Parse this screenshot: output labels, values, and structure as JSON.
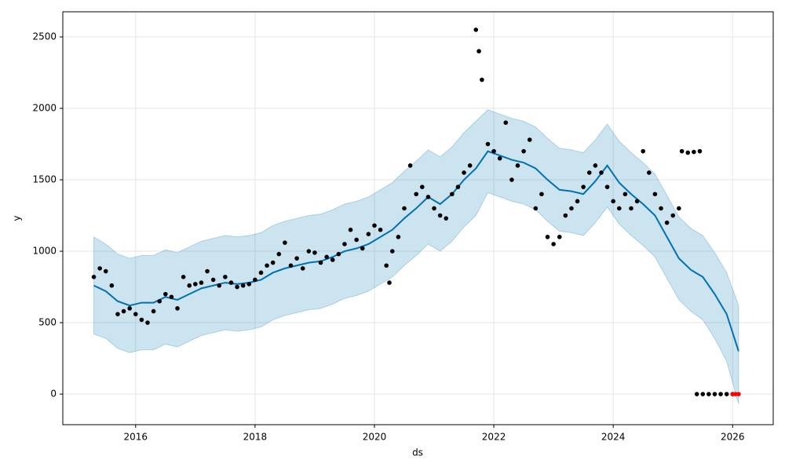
{
  "chart_data": {
    "type": "forecast",
    "xlabel": "ds",
    "ylabel": "y",
    "xlim": [
      2014.78,
      2026.68
    ],
    "ylim": [
      -214,
      2676
    ],
    "xticks": [
      2016,
      2018,
      2020,
      2022,
      2024,
      2026
    ],
    "yticks": [
      0,
      500,
      1000,
      1500,
      2000,
      2500
    ],
    "grid": true,
    "interval": {
      "color": "#0072B2",
      "x": [
        2015.3,
        2015.5,
        2015.7,
        2015.9,
        2016.1,
        2016.3,
        2016.5,
        2016.7,
        2016.9,
        2017.1,
        2017.3,
        2017.5,
        2017.7,
        2017.9,
        2018.1,
        2018.3,
        2018.5,
        2018.7,
        2018.9,
        2019.1,
        2019.3,
        2019.5,
        2019.7,
        2019.9,
        2020.1,
        2020.3,
        2020.5,
        2020.7,
        2020.9,
        2021.1,
        2021.3,
        2021.5,
        2021.7,
        2021.9,
        2022.1,
        2022.3,
        2022.5,
        2022.7,
        2022.9,
        2023.1,
        2023.3,
        2023.5,
        2023.7,
        2023.9,
        2024.1,
        2024.3,
        2024.5,
        2024.7,
        2024.9,
        2025.1,
        2025.3,
        2025.5,
        2025.7,
        2025.9,
        2026.1
      ],
      "upper": [
        1100,
        1050,
        980,
        950,
        970,
        970,
        1010,
        990,
        1030,
        1070,
        1090,
        1110,
        1100,
        1110,
        1130,
        1180,
        1210,
        1230,
        1250,
        1260,
        1290,
        1330,
        1350,
        1380,
        1430,
        1480,
        1560,
        1630,
        1710,
        1660,
        1730,
        1830,
        1910,
        1990,
        1960,
        1930,
        1910,
        1870,
        1790,
        1720,
        1710,
        1690,
        1780,
        1890,
        1770,
        1690,
        1620,
        1540,
        1390,
        1240,
        1160,
        1110,
        990,
        850,
        620
      ],
      "lower": [
        420,
        390,
        320,
        290,
        310,
        310,
        350,
        330,
        370,
        410,
        430,
        450,
        440,
        450,
        470,
        520,
        550,
        570,
        590,
        600,
        630,
        670,
        690,
        720,
        770,
        820,
        900,
        970,
        1050,
        1000,
        1070,
        1170,
        1250,
        1410,
        1380,
        1350,
        1330,
        1290,
        1210,
        1140,
        1130,
        1110,
        1200,
        1310,
        1190,
        1110,
        1040,
        960,
        810,
        660,
        580,
        520,
        390,
        230,
        -70
      ]
    },
    "forecast": {
      "color": "#0072B2",
      "x": [
        2015.3,
        2015.5,
        2015.7,
        2015.9,
        2016.1,
        2016.3,
        2016.5,
        2016.7,
        2016.9,
        2017.1,
        2017.3,
        2017.5,
        2017.7,
        2017.9,
        2018.1,
        2018.3,
        2018.5,
        2018.7,
        2018.9,
        2019.1,
        2019.3,
        2019.5,
        2019.7,
        2019.9,
        2020.1,
        2020.3,
        2020.5,
        2020.7,
        2020.9,
        2021.1,
        2021.3,
        2021.5,
        2021.7,
        2021.9,
        2022.1,
        2022.3,
        2022.5,
        2022.7,
        2022.9,
        2023.1,
        2023.3,
        2023.5,
        2023.7,
        2023.9,
        2024.1,
        2024.3,
        2024.5,
        2024.7,
        2024.9,
        2025.1,
        2025.3,
        2025.5,
        2025.7,
        2025.9,
        2026.1
      ],
      "values": [
        760,
        720,
        650,
        620,
        640,
        640,
        680,
        660,
        700,
        740,
        760,
        780,
        770,
        780,
        800,
        850,
        880,
        900,
        920,
        930,
        960,
        1000,
        1020,
        1050,
        1100,
        1150,
        1230,
        1300,
        1380,
        1330,
        1400,
        1500,
        1580,
        1700,
        1670,
        1640,
        1620,
        1580,
        1500,
        1430,
        1420,
        1400,
        1490,
        1600,
        1480,
        1400,
        1330,
        1250,
        1100,
        950,
        870,
        820,
        700,
        560,
        300
      ]
    },
    "observed": {
      "color": "#000000",
      "x": [
        2015.3,
        2015.4,
        2015.5,
        2015.6,
        2015.7,
        2015.8,
        2015.9,
        2016.0,
        2016.1,
        2016.2,
        2016.3,
        2016.4,
        2016.5,
        2016.6,
        2016.7,
        2016.8,
        2016.9,
        2017.0,
        2017.1,
        2017.2,
        2017.3,
        2017.4,
        2017.5,
        2017.6,
        2017.7,
        2017.8,
        2017.9,
        2018.0,
        2018.1,
        2018.2,
        2018.3,
        2018.4,
        2018.5,
        2018.6,
        2018.7,
        2018.8,
        2018.9,
        2019.0,
        2019.1,
        2019.2,
        2019.3,
        2019.4,
        2019.5,
        2019.6,
        2019.7,
        2019.8,
        2019.9,
        2020.0,
        2020.1,
        2020.2,
        2020.25,
        2020.3,
        2020.4,
        2020.5,
        2020.6,
        2020.7,
        2020.8,
        2020.9,
        2021.0,
        2021.1,
        2021.2,
        2021.3,
        2021.4,
        2021.5,
        2021.6,
        2021.7,
        2021.75,
        2021.8,
        2021.9,
        2022.0,
        2022.1,
        2022.2,
        2022.3,
        2022.4,
        2022.5,
        2022.6,
        2022.7,
        2022.8,
        2022.9,
        2023.0,
        2023.1,
        2023.2,
        2023.3,
        2023.4,
        2023.5,
        2023.6,
        2023.7,
        2023.8,
        2023.9,
        2024.0,
        2024.1,
        2024.2,
        2024.3,
        2024.4,
        2024.5,
        2024.6,
        2024.7,
        2024.8,
        2024.9,
        2025.0,
        2025.1,
        2025.15,
        2025.25,
        2025.35,
        2025.45,
        2025.4,
        2025.5,
        2025.6,
        2025.7,
        2025.8,
        2025.9,
        2026.0
      ],
      "values": [
        820,
        880,
        860,
        760,
        560,
        580,
        600,
        560,
        520,
        500,
        580,
        650,
        700,
        680,
        600,
        820,
        760,
        770,
        780,
        860,
        800,
        760,
        820,
        780,
        750,
        760,
        770,
        800,
        850,
        900,
        920,
        980,
        1060,
        900,
        950,
        880,
        1000,
        990,
        920,
        960,
        940,
        980,
        1050,
        1150,
        1080,
        1020,
        1120,
        1180,
        1150,
        900,
        780,
        1000,
        1100,
        1300,
        1600,
        1400,
        1450,
        1380,
        1300,
        1250,
        1230,
        1400,
        1450,
        1550,
        1600,
        2550,
        2400,
        2200,
        1750,
        1700,
        1650,
        1900,
        1500,
        1600,
        1700,
        1780,
        1300,
        1400,
        1100,
        1050,
        1100,
        1250,
        1300,
        1350,
        1450,
        1550,
        1600,
        1550,
        1450,
        1350,
        1300,
        1400,
        1300,
        1350,
        1700,
        1550,
        1400,
        1300,
        1200,
        1250,
        1300,
        1700,
        1690,
        1695,
        1700,
        0,
        0,
        0,
        0,
        0,
        0,
        0
      ]
    },
    "future_observed": {
      "color": "#ff0000",
      "x": [
        2026.0,
        2026.05,
        2026.1
      ],
      "values": [
        0,
        0,
        0
      ]
    }
  }
}
